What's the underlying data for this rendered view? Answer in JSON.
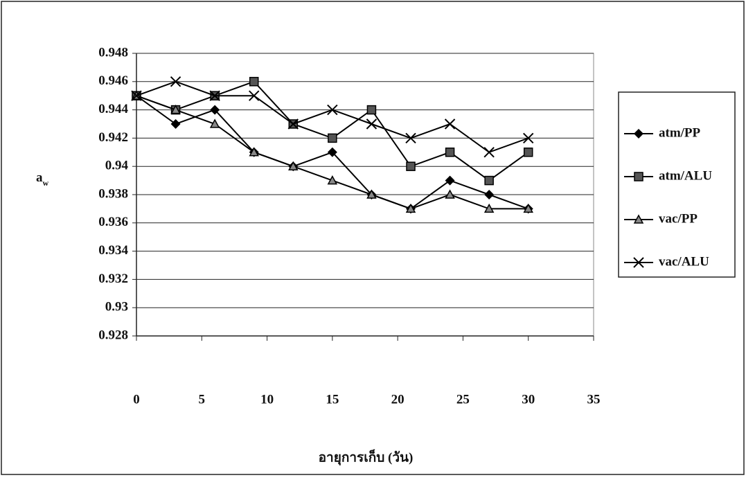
{
  "chart_data": {
    "type": "line",
    "y_label": "a",
    "y_label_subscript": "w",
    "x_label": "อายุการเก็บ (วัน)",
    "x": [
      0,
      3,
      6,
      9,
      12,
      15,
      18,
      21,
      24,
      27,
      30
    ],
    "series": [
      {
        "name": "atm/PP",
        "color": "#000000",
        "marker": "diamond",
        "values": [
          0.945,
          0.943,
          0.944,
          0.941,
          0.94,
          0.941,
          0.938,
          0.937,
          0.939,
          0.938,
          0.937
        ]
      },
      {
        "name": "atm/ALU",
        "color": "#000000",
        "marker": "square",
        "values": [
          0.945,
          0.944,
          0.945,
          0.946,
          0.943,
          0.942,
          0.944,
          0.94,
          0.941,
          0.939,
          0.941
        ]
      },
      {
        "name": "vac/PP",
        "color": "#000000",
        "marker": "triangle",
        "values": [
          0.945,
          0.944,
          0.943,
          0.941,
          0.94,
          0.939,
          0.938,
          0.937,
          0.938,
          0.937,
          0.937
        ]
      },
      {
        "name": "vac/ALU",
        "color": "#000000",
        "marker": "cross",
        "values": [
          0.945,
          0.946,
          0.945,
          0.945,
          0.943,
          0.944,
          0.943,
          0.942,
          0.943,
          0.941,
          0.942
        ]
      }
    ],
    "xlim": [
      0,
      35
    ],
    "xticks": [
      0,
      5,
      10,
      15,
      20,
      25,
      30,
      35
    ],
    "ylim": [
      0.928,
      0.948
    ],
    "yticks": [
      0.928,
      0.93,
      0.932,
      0.934,
      0.936,
      0.938,
      0.94,
      0.942,
      0.944,
      0.946,
      0.948
    ],
    "grid": true,
    "legend": "right"
  }
}
